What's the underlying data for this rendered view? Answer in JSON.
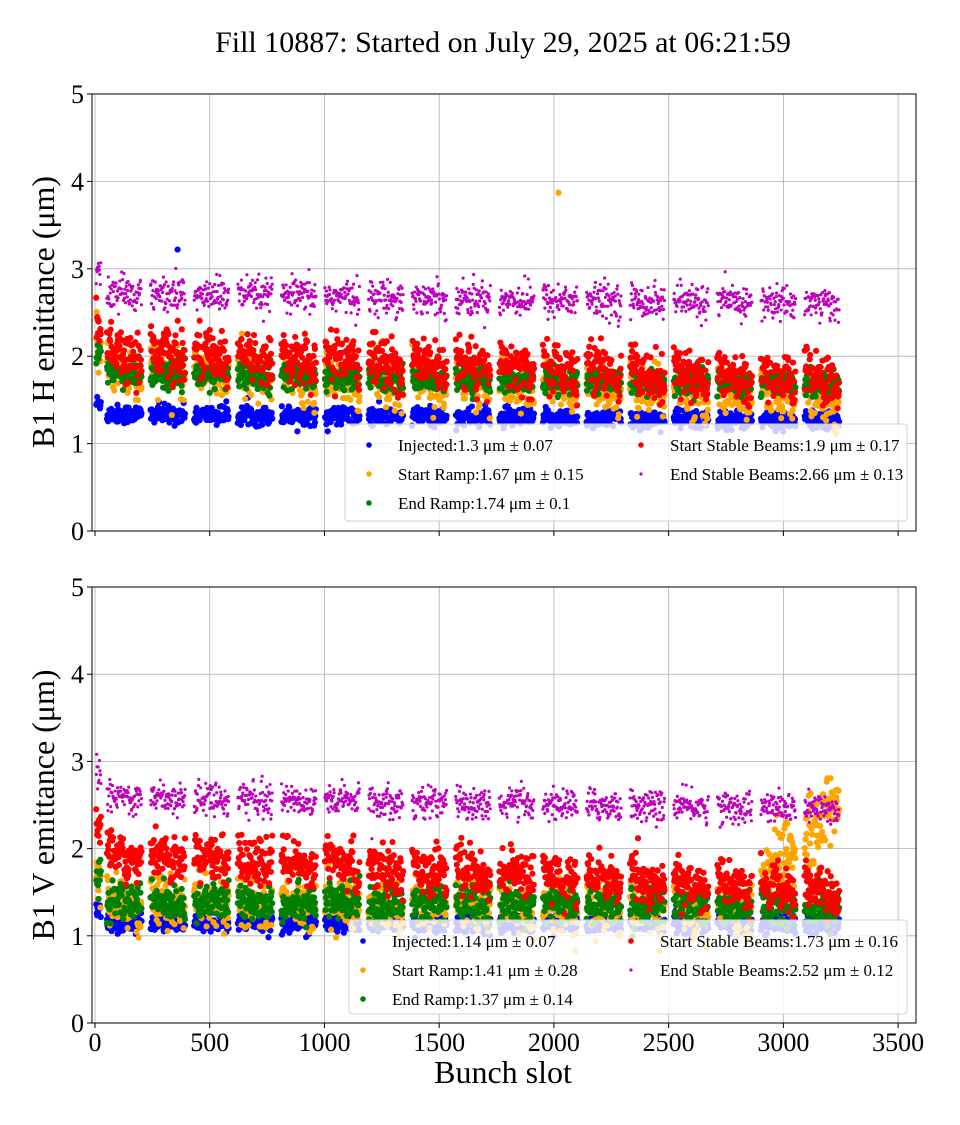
{
  "chart_data": [
    {
      "type": "scatter",
      "title": "Fill 10887: Started on July 29, 2025 at 06:21:59",
      "xlabel": "",
      "ylabel": "B1 H emittance (μm)",
      "xlim": [
        -13,
        3578
      ],
      "ylim": [
        0,
        5
      ],
      "xticks": [
        0,
        500,
        1000,
        1500,
        2000,
        2500,
        3000,
        3500
      ],
      "yticks": [
        0,
        1,
        2,
        3,
        4,
        5
      ],
      "grid": true,
      "legend_position": "lower-right",
      "trains_bunch_slots": [
        [
          5,
          25
        ],
        [
          52,
          202
        ],
        [
          242,
          392
        ],
        [
          432,
          582
        ],
        [
          622,
          772
        ],
        [
          812,
          962
        ],
        [
          1002,
          1152
        ],
        [
          1192,
          1342
        ],
        [
          1382,
          1532
        ],
        [
          1572,
          1722
        ],
        [
          1762,
          1912
        ],
        [
          1952,
          2102
        ],
        [
          2142,
          2292
        ],
        [
          2332,
          2482
        ],
        [
          2522,
          2672
        ],
        [
          2712,
          2862
        ],
        [
          2902,
          3052
        ],
        [
          3092,
          3242
        ]
      ],
      "series": [
        {
          "name": "Injected",
          "legend": "Injected:1.3 μm ± 0.07",
          "color": "#0000ff",
          "mean": 1.3,
          "std": 0.07,
          "level_first_to_last_train": [
            1.34,
            1.26
          ],
          "outliers": [
            [
              360,
              3.22
            ]
          ]
        },
        {
          "name": "Start Ramp",
          "legend": "Start Ramp:1.67 μm ± 0.15",
          "color": "#ffa500",
          "mean": 1.67,
          "std": 0.15,
          "level_first_to_last_train": [
            1.85,
            1.52
          ],
          "outliers": [
            [
              2020,
              3.87
            ]
          ]
        },
        {
          "name": "End Ramp",
          "legend": "End Ramp:1.74 μm ± 0.1",
          "color": "#008000",
          "mean": 1.74,
          "std": 0.1,
          "level_first_to_last_train": [
            1.8,
            1.68
          ],
          "outliers": []
        },
        {
          "name": "Start Stable Beams",
          "legend": "Start Stable Beams:1.9 μm ± 0.17",
          "color": "#ff0000",
          "mean": 1.9,
          "std": 0.17,
          "level_first_to_last_train": [
            2.05,
            1.72
          ],
          "outliers": []
        },
        {
          "name": "End Stable Beams",
          "legend": "End Stable Beams:2.66 μm ± 0.13",
          "color": "#bf00bf",
          "mean": 2.66,
          "std": 0.13,
          "level_first_to_last_train": [
            2.72,
            2.6
          ],
          "outliers": []
        }
      ]
    },
    {
      "type": "scatter",
      "title": "",
      "xlabel": "Bunch slot",
      "ylabel": "B1 V emittance (μm)",
      "xlim": [
        -13,
        3578
      ],
      "ylim": [
        0,
        5
      ],
      "xticks": [
        0,
        500,
        1000,
        1500,
        2000,
        2500,
        3000,
        3500
      ],
      "yticks": [
        0,
        1,
        2,
        3,
        4,
        5
      ],
      "grid": true,
      "legend_position": "lower-right",
      "trains_bunch_slots": [
        [
          5,
          25
        ],
        [
          52,
          202
        ],
        [
          242,
          392
        ],
        [
          432,
          582
        ],
        [
          622,
          772
        ],
        [
          812,
          962
        ],
        [
          1002,
          1152
        ],
        [
          1192,
          1342
        ],
        [
          1382,
          1532
        ],
        [
          1572,
          1722
        ],
        [
          1762,
          1912
        ],
        [
          1952,
          2102
        ],
        [
          2142,
          2292
        ],
        [
          2332,
          2482
        ],
        [
          2522,
          2672
        ],
        [
          2712,
          2862
        ],
        [
          2902,
          3052
        ],
        [
          3092,
          3242
        ]
      ],
      "series": [
        {
          "name": "Injected",
          "legend": "Injected:1.14 μm ± 0.07",
          "color": "#0000ff",
          "mean": 1.14,
          "std": 0.07,
          "level_first_to_last_train": [
            1.15,
            1.13
          ],
          "outliers": []
        },
        {
          "name": "Start Ramp",
          "legend": "Start Ramp:1.41 μm ± 0.28",
          "color": "#ffa500",
          "mean": 1.41,
          "std": 0.28,
          "level_first_to_last_train": [
            1.4,
            1.3
          ],
          "rise_last_trains": [
            2900,
            3242,
            1.6,
            2.55
          ],
          "outliers": []
        },
        {
          "name": "End Ramp",
          "legend": "End Ramp:1.37 μm ± 0.14",
          "color": "#008000",
          "mean": 1.37,
          "std": 0.14,
          "level_first_to_last_train": [
            1.4,
            1.33
          ],
          "outliers": []
        },
        {
          "name": "Start Stable Beams",
          "legend": "Start Stable Beams:1.73 μm ± 0.16",
          "color": "#ff0000",
          "mean": 1.73,
          "std": 0.16,
          "level_first_to_last_train": [
            1.95,
            1.5
          ],
          "outliers": []
        },
        {
          "name": "End Stable Beams",
          "legend": "End Stable Beams:2.52 μm ± 0.12",
          "color": "#bf00bf",
          "mean": 2.52,
          "std": 0.12,
          "level_first_to_last_train": [
            2.6,
            2.45
          ],
          "outliers": []
        }
      ]
    }
  ]
}
